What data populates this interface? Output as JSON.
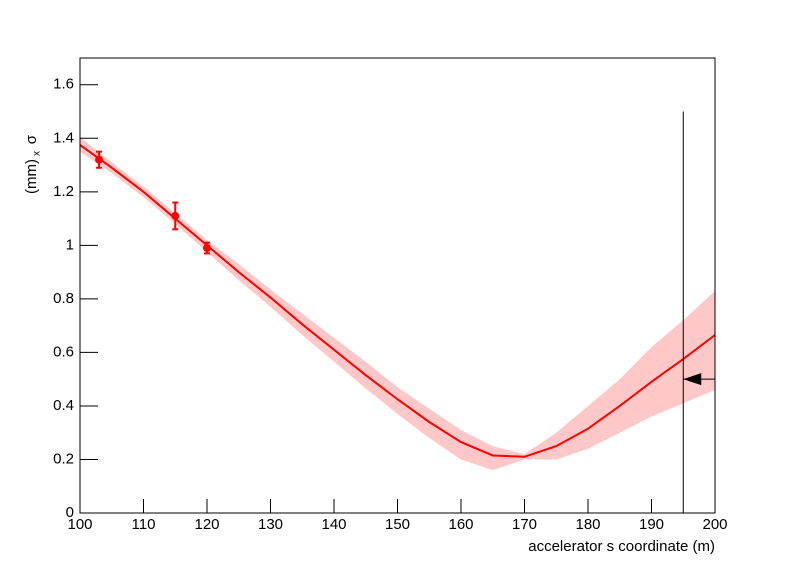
{
  "chart_data": {
    "type": "line",
    "xlabel": "accelerator s coordinate (m)",
    "ylabel": {
      "symbol": "σ",
      "subscript": "x",
      "unit": "(mm)"
    },
    "x": [
      100,
      105,
      110,
      115,
      120,
      125,
      130,
      135,
      140,
      145,
      150,
      155,
      160,
      165,
      170,
      175,
      180,
      185,
      190,
      195,
      200
    ],
    "series": [
      {
        "color": "#ff0000",
        "values": [
          1.375,
          1.29,
          1.2,
          1.1,
          1.0,
          0.9,
          0.805,
          0.705,
          0.61,
          0.515,
          0.425,
          0.34,
          0.265,
          0.215,
          0.21,
          0.25,
          0.315,
          0.4,
          0.49,
          0.575,
          0.665
        ]
      }
    ],
    "band": {
      "color": "#ffc8c8",
      "lower": [
        1.35,
        1.27,
        1.18,
        1.08,
        0.975,
        0.87,
        0.77,
        0.665,
        0.565,
        0.465,
        0.37,
        0.28,
        0.2,
        0.16,
        0.2,
        0.2,
        0.24,
        0.3,
        0.36,
        0.41,
        0.46
      ],
      "upper": [
        1.405,
        1.31,
        1.22,
        1.12,
        1.02,
        0.93,
        0.835,
        0.745,
        0.655,
        0.565,
        0.47,
        0.39,
        0.31,
        0.25,
        0.22,
        0.3,
        0.4,
        0.5,
        0.62,
        0.72,
        0.83
      ]
    },
    "points": {
      "color": "#ff0000",
      "x": [
        103,
        115,
        120
      ],
      "values": [
        1.32,
        1.11,
        0.99
      ],
      "errors": [
        0.03,
        0.05,
        0.02
      ]
    },
    "marker_line": {
      "x": 195,
      "y": [
        0,
        1.5
      ]
    },
    "arrow": {
      "x": [
        200,
        195
      ],
      "y": 0.5
    },
    "xlim": [
      100,
      200
    ],
    "ylim": [
      0,
      1.7
    ],
    "xticks": [
      100,
      110,
      120,
      130,
      140,
      150,
      160,
      170,
      180,
      190,
      200
    ],
    "yticks": [
      0,
      0.2,
      0.4,
      0.6,
      0.8,
      1,
      1.2,
      1.4,
      1.6
    ]
  }
}
